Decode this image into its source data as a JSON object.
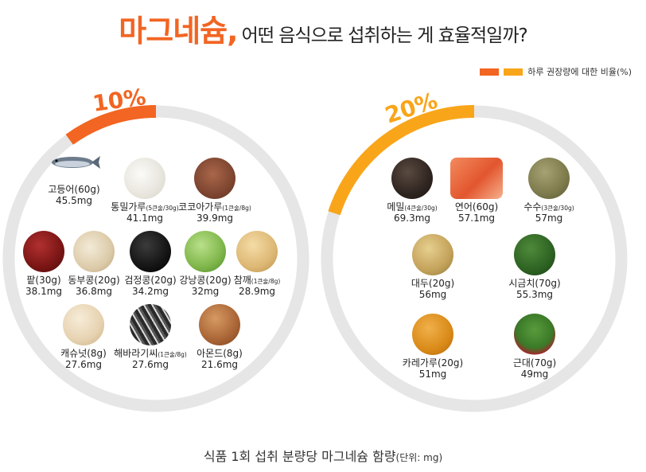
{
  "title": {
    "highlight": "마그네슘,",
    "rest": "어떤 음식으로 섭취하는 게 효율적일까?"
  },
  "legend": {
    "label": "하루 권장량에 대한 비율(%)",
    "colors": [
      "#f26522",
      "#f9a51a"
    ]
  },
  "caption": {
    "main": "식품 1회 섭취 분량당 마그네슘 함량",
    "unit": "(단위: mg)"
  },
  "chart_data": [
    {
      "type": "pie",
      "ring_percent": 10,
      "ring_label": "10%",
      "ring_color": "#f26522",
      "items": [
        {
          "name": "고등어(60g)",
          "note": "",
          "value": 45.5,
          "value_label": "45.5mg"
        },
        {
          "name": "통밀가루",
          "note": "(5큰술/30g)",
          "value": 41.1,
          "value_label": "41.1mg"
        },
        {
          "name": "코코아가루",
          "note": "(1큰술/8g)",
          "value": 39.9,
          "value_label": "39.9mg"
        },
        {
          "name": "팥(30g)",
          "note": "",
          "value": 38.1,
          "value_label": "38.1mg"
        },
        {
          "name": "동부콩(20g)",
          "note": "",
          "value": 36.8,
          "value_label": "36.8mg"
        },
        {
          "name": "검정콩(20g)",
          "note": "",
          "value": 34.2,
          "value_label": "34.2mg"
        },
        {
          "name": "강낭콩(20g)",
          "note": "",
          "value": 32,
          "value_label": "32mg"
        },
        {
          "name": "참깨",
          "note": "(1큰술/8g)",
          "value": 28.9,
          "value_label": "28.9mg"
        },
        {
          "name": "캐슈넛(8g)",
          "note": "",
          "value": 27.6,
          "value_label": "27.6mg"
        },
        {
          "name": "해바라기씨",
          "note": "(1큰술/8g)",
          "value": 27.6,
          "value_label": "27.6mg"
        },
        {
          "name": "아몬드(8g)",
          "note": "",
          "value": 21.6,
          "value_label": "21.6mg"
        }
      ]
    },
    {
      "type": "pie",
      "ring_percent": 20,
      "ring_label": "20%",
      "ring_color": "#f9a51a",
      "items": [
        {
          "name": "메밀",
          "note": "(4큰술/30g)",
          "value": 69.3,
          "value_label": "69.3mg"
        },
        {
          "name": "연어(60g)",
          "note": "",
          "value": 57.1,
          "value_label": "57.1mg"
        },
        {
          "name": "수수",
          "note": "(3큰술/30g)",
          "value": 57,
          "value_label": "57mg"
        },
        {
          "name": "대두(20g)",
          "note": "",
          "value": 56,
          "value_label": "56mg"
        },
        {
          "name": "시금치(70g)",
          "note": "",
          "value": 55.3,
          "value_label": "55.3mg"
        },
        {
          "name": "카레가루(20g)",
          "note": "",
          "value": 51,
          "value_label": "51mg"
        },
        {
          "name": "근대(70g)",
          "note": "",
          "value": 49,
          "value_label": "49mg"
        }
      ]
    }
  ]
}
